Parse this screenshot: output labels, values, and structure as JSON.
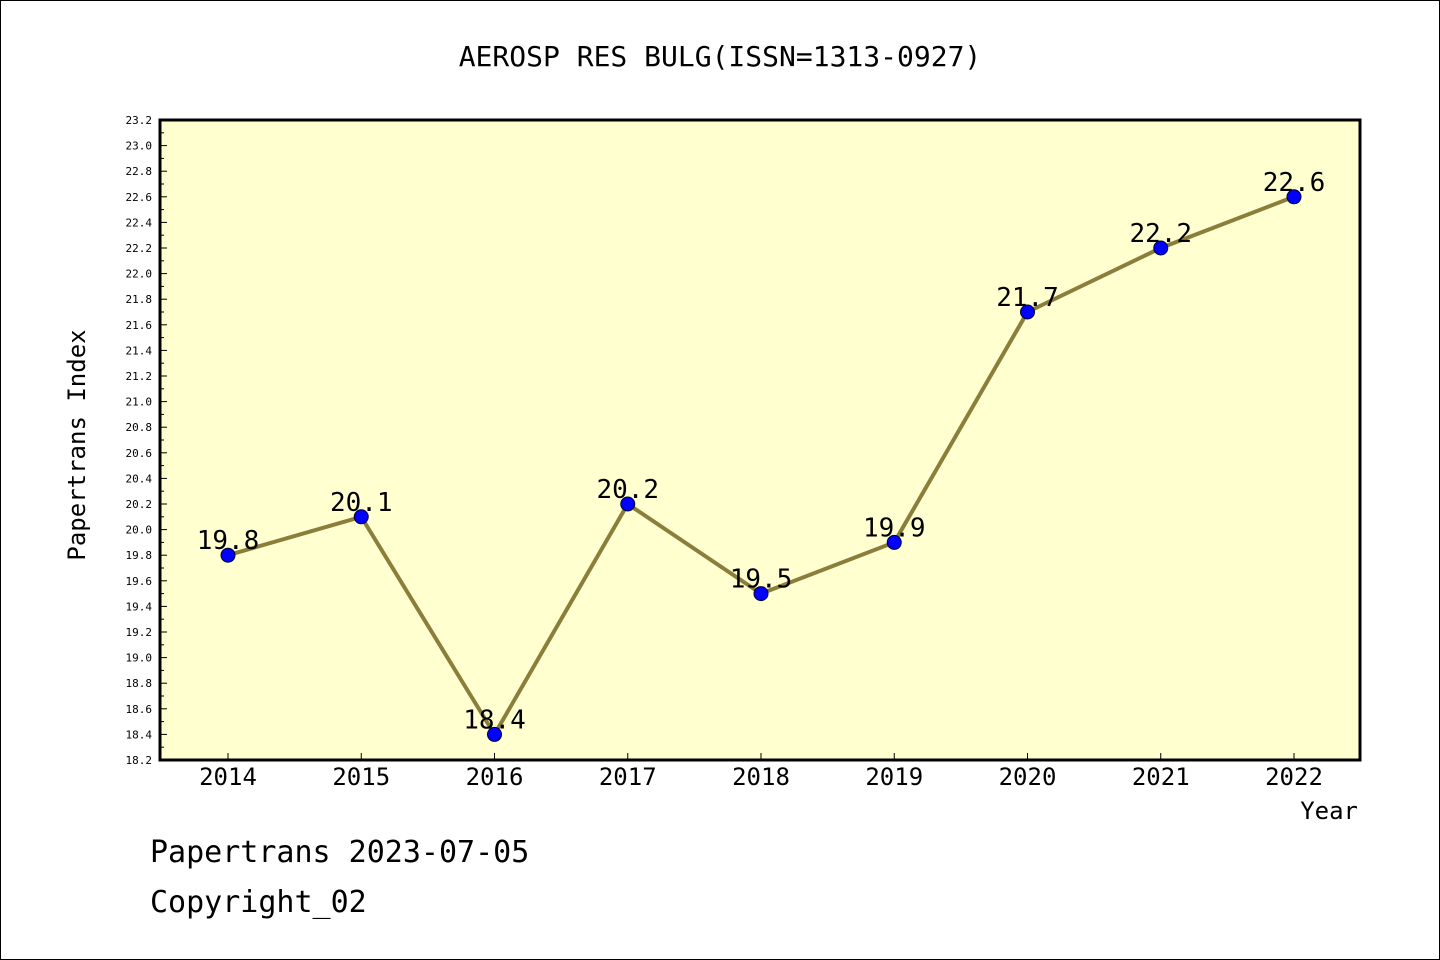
{
  "chart_data": {
    "type": "line",
    "title": "AEROSP RES BULG(ISSN=1313-0927)",
    "xlabel": "Year",
    "ylabel": "Papertrans Index",
    "categories": [
      "2014",
      "2015",
      "2016",
      "2017",
      "2018",
      "2019",
      "2020",
      "2021",
      "2022"
    ],
    "values": [
      19.8,
      20.1,
      18.4,
      20.2,
      19.5,
      19.9,
      21.7,
      22.2,
      22.6
    ],
    "data_labels": [
      "19.8",
      "20.1",
      "18.4",
      "20.2",
      "19.5",
      "19.9",
      "21.7",
      "22.2",
      "22.6"
    ],
    "ylim": [
      18.2,
      23.2
    ],
    "yticks": [
      "18.2",
      "18.4",
      "18.6",
      "18.8",
      "19.0",
      "19.2",
      "19.4",
      "19.6",
      "19.8",
      "20.0",
      "20.2",
      "20.4",
      "20.6",
      "20.8",
      "21.0",
      "21.2",
      "21.4",
      "21.6",
      "21.8",
      "22.0",
      "22.2",
      "22.4",
      "22.6",
      "22.8",
      "23.0",
      "23.2"
    ],
    "grid": false,
    "legend": "none",
    "colors": {
      "plot_background": "#ffffd0",
      "line": "#8b7d3a",
      "marker": "#0000ff"
    }
  },
  "footer": {
    "line1": "Papertrans 2023-07-05",
    "line2": "Copyright_02"
  }
}
